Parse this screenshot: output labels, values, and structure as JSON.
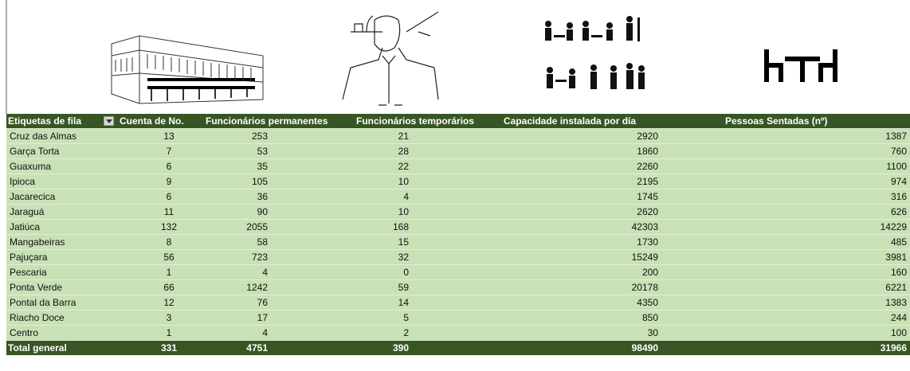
{
  "table": {
    "headers": [
      "Etiquetas de fila",
      "Cuenta de No.",
      "Funcionários permanentes",
      "Funcionários temporários",
      "Capacidade instalada por día",
      "Pessoas Sentadas (nº)"
    ],
    "rows": [
      [
        "Cruz das Almas",
        13,
        253,
        21,
        2920,
        1387
      ],
      [
        "Garça Torta",
        7,
        53,
        28,
        1860,
        760
      ],
      [
        "Guaxuma",
        6,
        35,
        22,
        2260,
        1100
      ],
      [
        "Ipioca",
        9,
        105,
        10,
        2195,
        974
      ],
      [
        "Jacarecica",
        6,
        36,
        4,
        1745,
        316
      ],
      [
        "Jaraguá",
        11,
        90,
        10,
        2620,
        626
      ],
      [
        "Jatiúca",
        132,
        2055,
        168,
        42303,
        14229
      ],
      [
        "Mangabeiras",
        8,
        58,
        15,
        1730,
        485
      ],
      [
        "Pajuçara",
        56,
        723,
        32,
        15249,
        3981
      ],
      [
        "Pescaria",
        1,
        4,
        0,
        200,
        160
      ],
      [
        "Ponta Verde",
        66,
        1242,
        59,
        20178,
        6221
      ],
      [
        "Pontal da Barra",
        12,
        76,
        14,
        4350,
        1383
      ],
      [
        "Riacho Doce",
        3,
        17,
        5,
        850,
        244
      ],
      [
        "Centro",
        1,
        4,
        2,
        30,
        100
      ]
    ],
    "total": [
      "Total general",
      331,
      4751,
      390,
      98490,
      31966
    ]
  }
}
